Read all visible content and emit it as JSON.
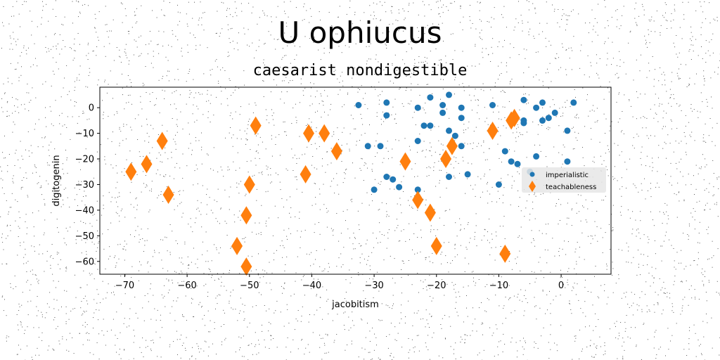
{
  "chart_data": {
    "type": "scatter",
    "title": "U ophiucus",
    "subtitle": "caesarist nondigestible",
    "xlabel": "jacobitism",
    "ylabel": "digitogenin",
    "xlim": [
      -74,
      8
    ],
    "ylim": [
      -65,
      8
    ],
    "xticks": [
      -70,
      -60,
      -50,
      -40,
      -30,
      -20,
      -10,
      0
    ],
    "yticks": [
      0,
      -10,
      -20,
      -30,
      -40,
      -50,
      -60
    ],
    "xtick_labels": [
      "−70",
      "−60",
      "−50",
      "−40",
      "−30",
      "−20",
      "−10",
      "0"
    ],
    "ytick_labels": [
      "0",
      "−10",
      "−20",
      "−30",
      "−40",
      "−50",
      "−60"
    ],
    "grid": false,
    "legend_position": "center-right",
    "series": [
      {
        "name": "imperialistic",
        "marker": "circle",
        "color": "#1f77b4",
        "points": [
          [
            -32.5,
            1
          ],
          [
            -31,
            -15
          ],
          [
            -30,
            -32
          ],
          [
            -29,
            -15
          ],
          [
            -28,
            2
          ],
          [
            -28,
            -3
          ],
          [
            -28,
            -27
          ],
          [
            -27,
            -28
          ],
          [
            -26,
            -31
          ],
          [
            -23,
            0
          ],
          [
            -23,
            -13
          ],
          [
            -23,
            -32
          ],
          [
            -22,
            -7
          ],
          [
            -21,
            4
          ],
          [
            -21,
            -7
          ],
          [
            -19,
            1
          ],
          [
            -19,
            -2
          ],
          [
            -18,
            5
          ],
          [
            -18,
            -9
          ],
          [
            -18,
            -27
          ],
          [
            -17,
            -11
          ],
          [
            -16,
            0
          ],
          [
            -16,
            -4
          ],
          [
            -16,
            -15
          ],
          [
            -15,
            -26
          ],
          [
            -11,
            1
          ],
          [
            -10,
            -30
          ],
          [
            -9,
            -17
          ],
          [
            -8,
            -21
          ],
          [
            -7,
            -22
          ],
          [
            -6,
            3
          ],
          [
            -6,
            -5
          ],
          [
            -6,
            -6
          ],
          [
            -5,
            -25
          ],
          [
            -4,
            0
          ],
          [
            -4,
            -19
          ],
          [
            -3,
            2
          ],
          [
            -3,
            -5
          ],
          [
            -2,
            -4
          ],
          [
            -1,
            -2
          ],
          [
            1,
            -9
          ],
          [
            1,
            -21
          ],
          [
            2,
            2
          ]
        ]
      },
      {
        "name": "teachableness",
        "marker": "diamond",
        "color": "#ff7f0e",
        "points": [
          [
            -69,
            -25
          ],
          [
            -66.5,
            -22
          ],
          [
            -64,
            -13
          ],
          [
            -63,
            -34
          ],
          [
            -52,
            -54
          ],
          [
            -50.5,
            -42
          ],
          [
            -50.5,
            -62
          ],
          [
            -50,
            -30
          ],
          [
            -49,
            -7
          ],
          [
            -41,
            -26
          ],
          [
            -40.5,
            -10
          ],
          [
            -38,
            -10
          ],
          [
            -36,
            -17
          ],
          [
            -25,
            -21
          ],
          [
            -23,
            -36
          ],
          [
            -21,
            -41
          ],
          [
            -20,
            -54
          ],
          [
            -18.5,
            -20
          ],
          [
            -17.5,
            -15
          ],
          [
            -11,
            -9
          ],
          [
            -9,
            -57
          ],
          [
            -8,
            -5
          ],
          [
            -7.5,
            -4
          ]
        ]
      }
    ]
  }
}
